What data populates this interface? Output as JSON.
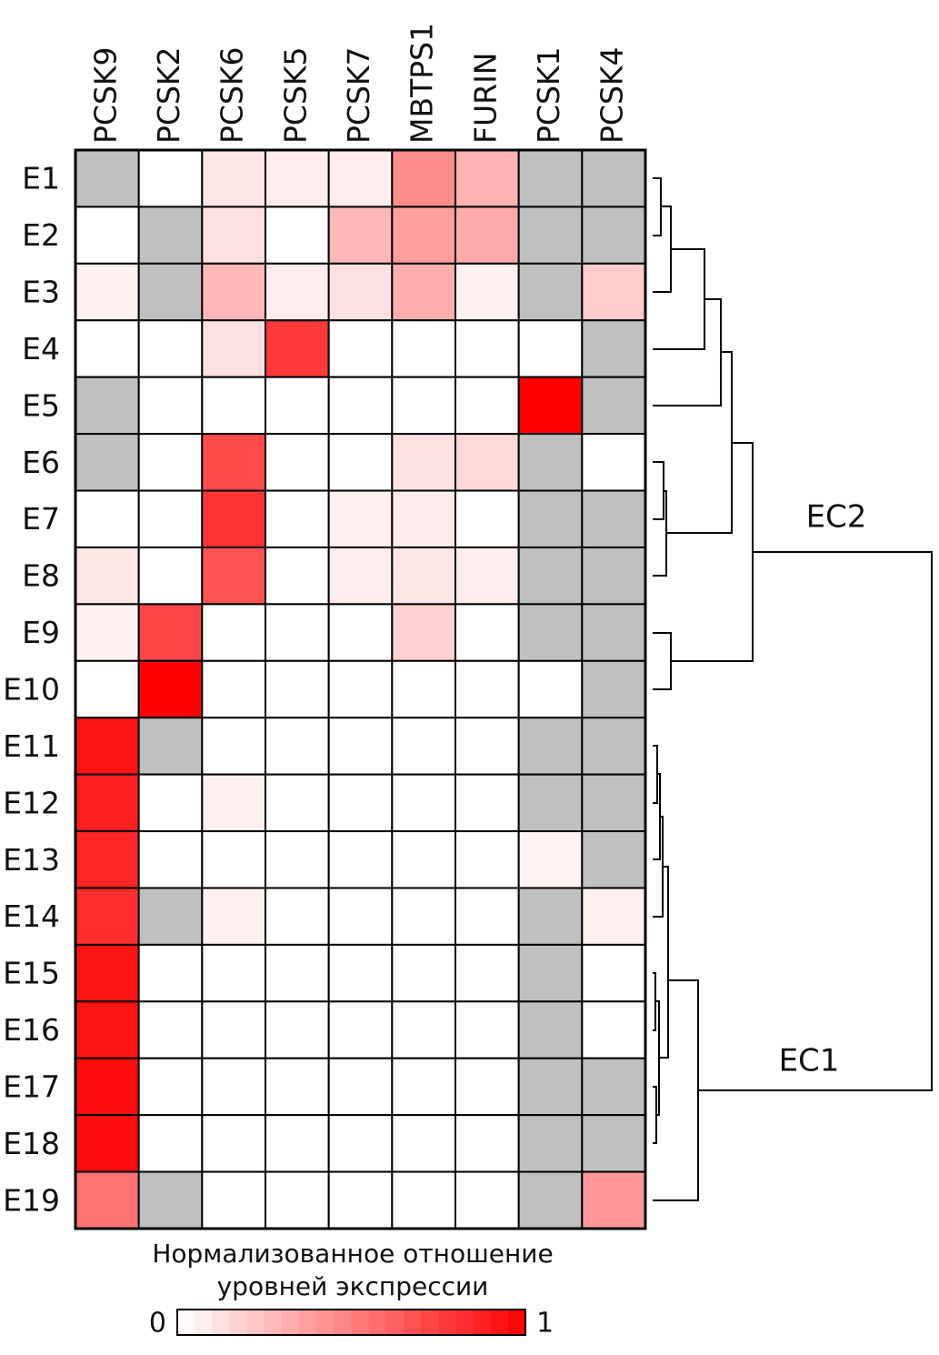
{
  "chart_data": {
    "type": "heatmap",
    "columns": [
      "PCSK9",
      "PCSK2",
      "PCSK6",
      "PCSK5",
      "PCSK7",
      "MBTPS1",
      "FURIN",
      "PCSK1",
      "PCSK4"
    ],
    "rows": [
      "E1",
      "E2",
      "E3",
      "E4",
      "E5",
      "E6",
      "E7",
      "E8",
      "E9",
      "E10",
      "E11",
      "E12",
      "E13",
      "E14",
      "E15",
      "E16",
      "E17",
      "E18",
      "E19"
    ],
    "values": [
      [
        null,
        0,
        0.1,
        0.07,
        0.07,
        0.45,
        0.3,
        null,
        null
      ],
      [
        0,
        null,
        0.12,
        0,
        0.28,
        0.38,
        0.33,
        null,
        null
      ],
      [
        0.06,
        null,
        0.28,
        0.07,
        0.12,
        0.32,
        0.06,
        null,
        0.2
      ],
      [
        0,
        0,
        0.12,
        0.78,
        0,
        0,
        0,
        0,
        null
      ],
      [
        null,
        0,
        0,
        0,
        0,
        0,
        0,
        1,
        null
      ],
      [
        null,
        0,
        0.7,
        0,
        0,
        0.12,
        0.15,
        null,
        0
      ],
      [
        0,
        0,
        0.8,
        0,
        0.06,
        0.08,
        0,
        null,
        null
      ],
      [
        0.1,
        0,
        0.68,
        0,
        0.07,
        0.1,
        0.07,
        null,
        null
      ],
      [
        0.06,
        0.72,
        0,
        0,
        0,
        0.18,
        0,
        null,
        null
      ],
      [
        0,
        1,
        0,
        0,
        0,
        0,
        0,
        0,
        null
      ],
      [
        0.92,
        null,
        0,
        0,
        0,
        0,
        0,
        null,
        null
      ],
      [
        0.88,
        0,
        0.06,
        0,
        0,
        0,
        0,
        null,
        null
      ],
      [
        0.85,
        0,
        0,
        0,
        0,
        0,
        0,
        0.05,
        null
      ],
      [
        0.82,
        null,
        0.06,
        0,
        0,
        0,
        0,
        null,
        0.06
      ],
      [
        0.92,
        0,
        0,
        0,
        0,
        0,
        0,
        null,
        0
      ],
      [
        0.92,
        0,
        0,
        0,
        0,
        0,
        0,
        null,
        0
      ],
      [
        0.95,
        0,
        0,
        0,
        0,
        0,
        0,
        null,
        null
      ],
      [
        0.95,
        0,
        0,
        0,
        0,
        0,
        0,
        null,
        null
      ],
      [
        0.55,
        null,
        0,
        0,
        0,
        0,
        0,
        null,
        0.4
      ]
    ],
    "color_low": "#ffffff",
    "color_high": "#ff0000",
    "color_missing": "#c0c0c0",
    "colorbar_title": [
      "Нормализованное отношение",
      "уровней экспрессии"
    ],
    "clim": [
      0,
      1
    ],
    "colorbar_ticks": [
      0,
      1
    ],
    "annotations": [
      "EC2",
      "EC1"
    ]
  }
}
